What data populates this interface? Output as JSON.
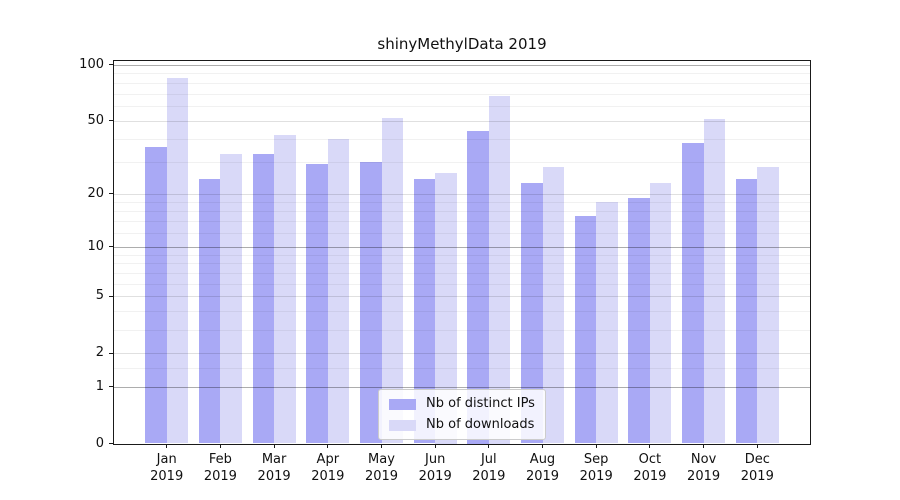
{
  "title": "shinyMethylData 2019",
  "chart_data": {
    "type": "bar",
    "title": "shinyMethylData 2019",
    "xlabel": "",
    "ylabel": "",
    "scale": "log1p",
    "categories": [
      "Jan",
      "Feb",
      "Mar",
      "Apr",
      "May",
      "Jun",
      "Jul",
      "Aug",
      "Sep",
      "Oct",
      "Nov",
      "Dec"
    ],
    "year": "2019",
    "series": [
      {
        "name": "Nb of distinct IPs",
        "color": "#a9a9f5",
        "values": [
          36,
          24,
          33,
          29,
          30,
          24,
          44,
          23,
          15,
          19,
          38,
          24
        ]
      },
      {
        "name": "Nb of downloads",
        "color": "#d9d9f8",
        "values": [
          85,
          33,
          42,
          40,
          52,
          26,
          68,
          28,
          18,
          23,
          51,
          28
        ]
      }
    ],
    "yticks": [
      0,
      1,
      2,
      5,
      10,
      20,
      50,
      100
    ],
    "ylim": [
      0,
      106
    ],
    "grid": {
      "on": true,
      "major_values": [
        1,
        10,
        100
      ],
      "mid_values": [
        2,
        5,
        20,
        50
      ],
      "minor_values": [
        1.5,
        3,
        4,
        6,
        7,
        8,
        9,
        12,
        14,
        16,
        18,
        30,
        40,
        60,
        70,
        80,
        90
      ]
    },
    "legend_position": "lower center"
  },
  "colors": {
    "bar_dark": "#a9a9f5",
    "bar_light": "#d9d9f8",
    "grid_major": "rgba(0,0,0,0.32)",
    "grid_mid": "rgba(0,0,0,0.12)",
    "grid_minor": "rgba(0,0,0,0.055)",
    "spine": "#1a1a1a",
    "legend_border": "#cccccc"
  }
}
